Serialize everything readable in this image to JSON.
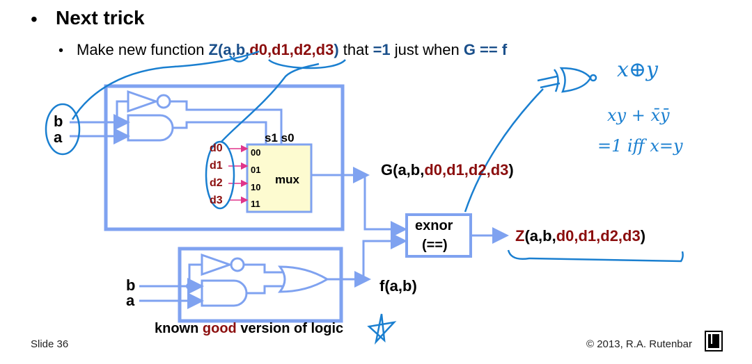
{
  "heading": {
    "bullet": "•",
    "title": "Next trick"
  },
  "subheading": {
    "bullet": "•",
    "prefix": "Make new function ",
    "z_open": "Z(",
    "a": "a",
    "c1": ",",
    "b": "b",
    "c2": ",",
    "d_args": "d0,d1,d2,d3",
    "z_close": ")",
    "middle1": " that ",
    "eq1": "=1",
    "middle2": " just when ",
    "cond": "G == f"
  },
  "top_circuit": {
    "inputs": [
      "b",
      "a"
    ],
    "select_label": "s1 s0",
    "data_inputs": [
      "d0",
      "d1",
      "d2",
      "d3"
    ],
    "codes": [
      "00",
      "01",
      "10",
      "11"
    ],
    "mux_label": "mux"
  },
  "g_output": {
    "open": "G(a,b,",
    "args": "d0,d1,d2,d3",
    "close": ")"
  },
  "comparator": {
    "line1": "exnor",
    "line2": "(==)"
  },
  "z_output": {
    "open": "Z",
    "mid": "(a,b,",
    "args": "d0,d1,d2,d3",
    "close": ")"
  },
  "bottom_circuit": {
    "inputs": [
      "b",
      "a"
    ],
    "output": "f(a,b)"
  },
  "caption": {
    "before": "known ",
    "good": "good",
    "after": " version of logic"
  },
  "handwriting": [
    "x⊕y",
    "xy + x̄ȳ",
    "=1 iff x=y"
  ],
  "footer": {
    "slide": "Slide 36",
    "copyright": "© 2013, R.A. Rutenbar"
  },
  "colors": {
    "accent_blue": "#1a4f8a",
    "accent_red": "#8b0e0e",
    "box_blue": "#7fa2f0",
    "ink_blue": "#1a7fd0",
    "mux_fill": "#fdfbd0",
    "pink": "#e0348a"
  }
}
